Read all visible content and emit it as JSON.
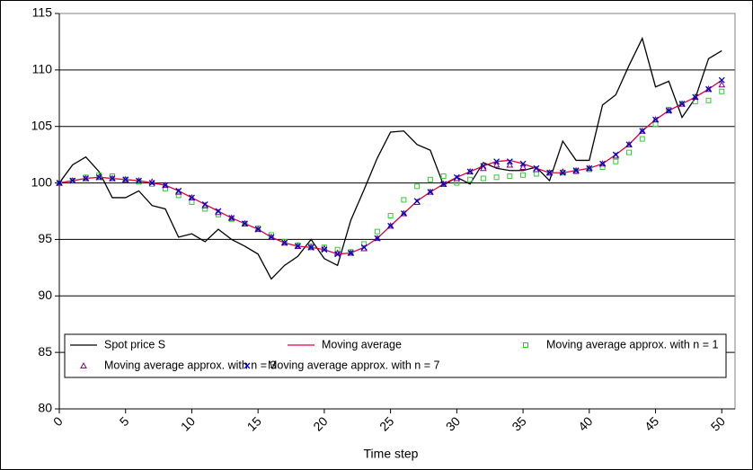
{
  "chart_data": {
    "type": "line",
    "x_label": "Time step",
    "x": [
      0,
      1,
      2,
      3,
      4,
      5,
      6,
      7,
      8,
      9,
      10,
      11,
      12,
      13,
      14,
      15,
      16,
      17,
      18,
      19,
      20,
      21,
      22,
      23,
      24,
      25,
      26,
      27,
      28,
      29,
      30,
      31,
      32,
      33,
      34,
      35,
      36,
      37,
      38,
      39,
      40,
      41,
      42,
      43,
      44,
      45,
      46,
      47,
      48,
      49,
      50
    ],
    "xlim": [
      0,
      51
    ],
    "xticks": [
      0,
      5,
      10,
      15,
      20,
      25,
      30,
      35,
      40,
      45,
      50
    ],
    "ylim": [
      80,
      115
    ],
    "yticks": [
      80,
      85,
      90,
      95,
      100,
      105,
      110,
      115
    ],
    "grid": true,
    "legend": "bottom",
    "series": [
      {
        "name": "Spot price S",
        "color": "#000000",
        "marker": "line",
        "values": [
          100,
          101.6,
          102.3,
          101,
          98.7,
          98.7,
          99.3,
          98,
          97.7,
          95.2,
          95.5,
          94.8,
          95.9,
          95,
          94.4,
          93.7,
          91.5,
          92.7,
          93.5,
          95,
          93.3,
          92.7,
          96.7,
          99.4,
          102.2,
          104.5,
          104.6,
          103.4,
          102.9,
          99.8,
          100.5,
          99.9,
          101.8,
          101.3,
          101.1,
          101.1,
          101.4,
          100.2,
          103.7,
          102,
          102,
          106.9,
          107.8,
          110.4,
          112.8,
          108.5,
          109,
          105.8,
          107.5,
          111,
          111.7
        ]
      },
      {
        "name": "Moving average",
        "color": "#e0003c",
        "marker": "line",
        "values": [
          100,
          100.2,
          100.4,
          100.5,
          100.4,
          100.3,
          100.2,
          100,
          99.8,
          99.3,
          98.7,
          98.1,
          97.5,
          96.9,
          96.4,
          95.9,
          95.2,
          94.7,
          94.4,
          94.3,
          94.1,
          93.7,
          93.8,
          94.3,
          95.1,
          96.2,
          97.3,
          98.4,
          99.2,
          99.9,
          100.5,
          101,
          101.5,
          101.9,
          102,
          101.7,
          101.3,
          100.9,
          100.9,
          101.1,
          101.3,
          101.7,
          102.5,
          103.4,
          104.6,
          105.6,
          106.4,
          107,
          107.6,
          108.3,
          109.1
        ]
      },
      {
        "name": "Moving average approx. with n = 1",
        "color": "#33cc33",
        "marker": "square",
        "values": [
          100,
          100.2,
          100.5,
          100.7,
          100.6,
          100.3,
          100.1,
          99.9,
          99.5,
          98.9,
          98.3,
          97.7,
          97.2,
          96.8,
          96.4,
          96,
          95.4,
          94.8,
          94.5,
          94.4,
          94.3,
          94.1,
          93.9,
          94.6,
          95.7,
          97.1,
          98.5,
          99.7,
          100.3,
          100.6,
          100,
          100.3,
          100.4,
          100.5,
          100.6,
          100.7,
          100.8,
          100.9,
          100.9,
          101,
          101.2,
          101.4,
          101.9,
          102.7,
          103.9,
          105.2,
          106.5,
          107,
          107.2,
          107.3,
          108.1
        ]
      },
      {
        "name": "Moving average approx. with n = 3",
        "color": "#800080",
        "marker": "triangle",
        "values": [
          100,
          100.2,
          100.4,
          100.5,
          100.4,
          100.3,
          100.2,
          100.1,
          99.8,
          99.2,
          98.7,
          98,
          97.4,
          96.9,
          96.4,
          95.9,
          95.2,
          94.7,
          94.4,
          94.3,
          94.2,
          93.8,
          93.8,
          94.2,
          95.1,
          96.2,
          97.3,
          98.3,
          99.2,
          99.9,
          100.4,
          101,
          101.3,
          101.6,
          101.6,
          101.4,
          101.2,
          100.9,
          101,
          101.1,
          101.3,
          101.7,
          102.4,
          103.4,
          104.6,
          105.6,
          106.4,
          107,
          107.6,
          108.3,
          108.7
        ]
      },
      {
        "name": "Moving average approx. with n = 7",
        "color": "#0000cc",
        "marker": "x",
        "values": [
          100,
          100.2,
          100.4,
          100.5,
          100.4,
          100.3,
          100.2,
          100,
          99.8,
          99.3,
          98.7,
          98.1,
          97.5,
          96.9,
          96.4,
          95.9,
          95.2,
          94.7,
          94.4,
          94.3,
          94.1,
          93.7,
          93.8,
          94.3,
          95.1,
          96.2,
          97.3,
          98.4,
          99.2,
          99.9,
          100.5,
          101,
          101.5,
          101.9,
          101.9,
          101.7,
          101.3,
          100.9,
          100.9,
          101.1,
          101.3,
          101.7,
          102.5,
          103.4,
          104.6,
          105.6,
          106.4,
          107,
          107.6,
          108.3,
          109.1
        ]
      }
    ]
  }
}
